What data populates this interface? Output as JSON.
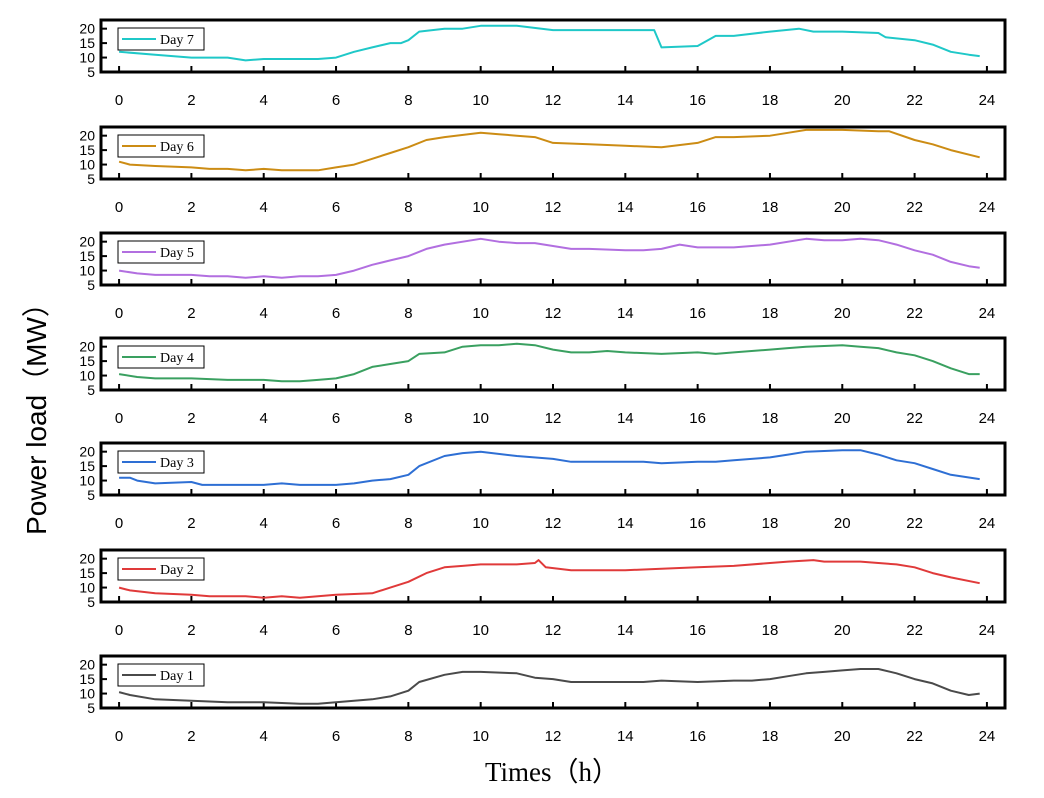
{
  "chart_data": {
    "type": "line",
    "ylabel": "Power load（MW）",
    "xlabel": "Times（h）",
    "xlim": [
      -0.5,
      24.5
    ],
    "x_ticks": [
      0,
      2,
      4,
      6,
      8,
      10,
      12,
      14,
      16,
      18,
      20,
      22,
      24
    ],
    "ylim": [
      5,
      23
    ],
    "y_ticks": [
      5,
      10,
      15,
      20
    ],
    "legend_position": "top-left",
    "series": [
      {
        "name": "Day 7",
        "color": "#1FC8C8",
        "values": [
          [
            0,
            12
          ],
          [
            1,
            11
          ],
          [
            2,
            10
          ],
          [
            3,
            10
          ],
          [
            3.5,
            9
          ],
          [
            4,
            9.5
          ],
          [
            5,
            9.5
          ],
          [
            5.5,
            9.5
          ],
          [
            6,
            10
          ],
          [
            6.5,
            12
          ],
          [
            7,
            13.5
          ],
          [
            7.5,
            15
          ],
          [
            7.8,
            15
          ],
          [
            8,
            16
          ],
          [
            8.3,
            19
          ],
          [
            9,
            20
          ],
          [
            9.5,
            20
          ],
          [
            10,
            21
          ],
          [
            11,
            21
          ],
          [
            12,
            19.5
          ],
          [
            13,
            19.5
          ],
          [
            14,
            19.5
          ],
          [
            14.8,
            19.5
          ],
          [
            15,
            13.5
          ],
          [
            16,
            14
          ],
          [
            16.5,
            17.5
          ],
          [
            17,
            17.5
          ],
          [
            18,
            19
          ],
          [
            18.8,
            20
          ],
          [
            19.2,
            19
          ],
          [
            20,
            19
          ],
          [
            21,
            18.5
          ],
          [
            21.2,
            17
          ],
          [
            22,
            16
          ],
          [
            22.5,
            14.5
          ],
          [
            23,
            12
          ],
          [
            23.5,
            11
          ],
          [
            23.8,
            10.5
          ]
        ]
      },
      {
        "name": "Day 6",
        "color": "#CC8C14",
        "values": [
          [
            0,
            11
          ],
          [
            0.3,
            10
          ],
          [
            1,
            9.5
          ],
          [
            2,
            9
          ],
          [
            2.5,
            8.5
          ],
          [
            3,
            8.5
          ],
          [
            3.5,
            8
          ],
          [
            4,
            8.5
          ],
          [
            4.5,
            8
          ],
          [
            5,
            8
          ],
          [
            5.5,
            8
          ],
          [
            6,
            9
          ],
          [
            6.5,
            10
          ],
          [
            7,
            12
          ],
          [
            7.5,
            14
          ],
          [
            8,
            16
          ],
          [
            8.5,
            18.5
          ],
          [
            9,
            19.5
          ],
          [
            10,
            21
          ],
          [
            10.5,
            20.5
          ],
          [
            11,
            20
          ],
          [
            11.5,
            19.5
          ],
          [
            12,
            17.5
          ],
          [
            13,
            17
          ],
          [
            14,
            16.5
          ],
          [
            15,
            16
          ],
          [
            16,
            17.5
          ],
          [
            16.5,
            19.5
          ],
          [
            17,
            19.5
          ],
          [
            18,
            20
          ],
          [
            18.5,
            21
          ],
          [
            19,
            22
          ],
          [
            20,
            22
          ],
          [
            21,
            21.5
          ],
          [
            21.3,
            21.5
          ],
          [
            22,
            18.5
          ],
          [
            22.5,
            17
          ],
          [
            23,
            15
          ],
          [
            23.8,
            12.5
          ]
        ]
      },
      {
        "name": "Day 5",
        "color": "#B26FE0",
        "values": [
          [
            0,
            10
          ],
          [
            0.5,
            9
          ],
          [
            1,
            8.5
          ],
          [
            2,
            8.5
          ],
          [
            2.5,
            8
          ],
          [
            3,
            8
          ],
          [
            3.5,
            7.5
          ],
          [
            4,
            8
          ],
          [
            4.5,
            7.5
          ],
          [
            5,
            8
          ],
          [
            5.5,
            8
          ],
          [
            6,
            8.5
          ],
          [
            6.5,
            10
          ],
          [
            7,
            12
          ],
          [
            7.5,
            13.5
          ],
          [
            8,
            15
          ],
          [
            8.5,
            17.5
          ],
          [
            9,
            19
          ],
          [
            10,
            21
          ],
          [
            10.5,
            20
          ],
          [
            11,
            19.5
          ],
          [
            11.5,
            19.5
          ],
          [
            12,
            18.5
          ],
          [
            12.5,
            17.5
          ],
          [
            13,
            17.5
          ],
          [
            14,
            17
          ],
          [
            14.5,
            17
          ],
          [
            15,
            17.5
          ],
          [
            15.5,
            19
          ],
          [
            16,
            18
          ],
          [
            17,
            18
          ],
          [
            18,
            19
          ],
          [
            19,
            21
          ],
          [
            19.5,
            20.5
          ],
          [
            20,
            20.5
          ],
          [
            20.5,
            21
          ],
          [
            21,
            20.5
          ],
          [
            21.5,
            19
          ],
          [
            22,
            17
          ],
          [
            22.5,
            15.5
          ],
          [
            23,
            13
          ],
          [
            23.5,
            11.5
          ],
          [
            23.8,
            11
          ]
        ]
      },
      {
        "name": "Day 4",
        "color": "#3AA060",
        "values": [
          [
            0,
            10.5
          ],
          [
            0.5,
            9.5
          ],
          [
            1,
            9
          ],
          [
            2,
            9
          ],
          [
            3,
            8.5
          ],
          [
            4,
            8.5
          ],
          [
            4.5,
            8
          ],
          [
            5,
            8
          ],
          [
            5.5,
            8.5
          ],
          [
            6,
            9
          ],
          [
            6.5,
            10.5
          ],
          [
            7,
            13
          ],
          [
            7.5,
            14
          ],
          [
            8,
            15
          ],
          [
            8.3,
            17.5
          ],
          [
            9,
            18
          ],
          [
            9.5,
            20
          ],
          [
            10,
            20.5
          ],
          [
            10.5,
            20.5
          ],
          [
            11,
            21
          ],
          [
            11.5,
            20.5
          ],
          [
            12,
            19
          ],
          [
            12.5,
            18
          ],
          [
            13,
            18
          ],
          [
            13.5,
            18.5
          ],
          [
            14,
            18
          ],
          [
            15,
            17.5
          ],
          [
            16,
            18
          ],
          [
            16.5,
            17.5
          ],
          [
            17,
            18
          ],
          [
            18,
            19
          ],
          [
            18.5,
            19.5
          ],
          [
            19,
            20
          ],
          [
            20,
            20.5
          ],
          [
            20.5,
            20
          ],
          [
            21,
            19.5
          ],
          [
            21.5,
            18
          ],
          [
            22,
            17
          ],
          [
            22.5,
            15
          ],
          [
            23,
            12.5
          ],
          [
            23.5,
            10.5
          ],
          [
            23.8,
            10.5
          ]
        ]
      },
      {
        "name": "Day 3",
        "color": "#2E6FD4",
        "values": [
          [
            0,
            11
          ],
          [
            0.3,
            11
          ],
          [
            0.5,
            10
          ],
          [
            1,
            9
          ],
          [
            2,
            9.5
          ],
          [
            2.3,
            8.5
          ],
          [
            3,
            8.5
          ],
          [
            4,
            8.5
          ],
          [
            4.5,
            9
          ],
          [
            5,
            8.5
          ],
          [
            6,
            8.5
          ],
          [
            6.5,
            9
          ],
          [
            7,
            10
          ],
          [
            7.5,
            10.5
          ],
          [
            8,
            12
          ],
          [
            8.3,
            15
          ],
          [
            9,
            18.5
          ],
          [
            9.5,
            19.5
          ],
          [
            10,
            20
          ],
          [
            11,
            18.5
          ],
          [
            12,
            17.5
          ],
          [
            12.5,
            16.5
          ],
          [
            13,
            16.5
          ],
          [
            14,
            16.5
          ],
          [
            14.5,
            16.5
          ],
          [
            15,
            16
          ],
          [
            16,
            16.5
          ],
          [
            16.5,
            16.5
          ],
          [
            17,
            17
          ],
          [
            18,
            18
          ],
          [
            18.5,
            19
          ],
          [
            19,
            20
          ],
          [
            20,
            20.5
          ],
          [
            20.5,
            20.5
          ],
          [
            21,
            19
          ],
          [
            21.5,
            17
          ],
          [
            22,
            16
          ],
          [
            22.5,
            14
          ],
          [
            23,
            12
          ],
          [
            23.8,
            10.5
          ]
        ]
      },
      {
        "name": "Day 2",
        "color": "#E03A3A",
        "values": [
          [
            0,
            10
          ],
          [
            0.3,
            9
          ],
          [
            1,
            8
          ],
          [
            2,
            7.5
          ],
          [
            2.5,
            7
          ],
          [
            3,
            7
          ],
          [
            3.5,
            7
          ],
          [
            4,
            6.5
          ],
          [
            4.5,
            7
          ],
          [
            5,
            6.5
          ],
          [
            6,
            7.5
          ],
          [
            7,
            8
          ],
          [
            7.5,
            10
          ],
          [
            8,
            12
          ],
          [
            8.5,
            15
          ],
          [
            9,
            17
          ],
          [
            9.5,
            17.5
          ],
          [
            10,
            18
          ],
          [
            11,
            18
          ],
          [
            11.5,
            18.5
          ],
          [
            11.6,
            19.5
          ],
          [
            11.8,
            17
          ],
          [
            12.5,
            16
          ],
          [
            13,
            16
          ],
          [
            14,
            16
          ],
          [
            15,
            16.5
          ],
          [
            16,
            17
          ],
          [
            17,
            17.5
          ],
          [
            18,
            18.5
          ],
          [
            18.5,
            19
          ],
          [
            19.2,
            19.5
          ],
          [
            19.5,
            19
          ],
          [
            20,
            19
          ],
          [
            20.5,
            19
          ],
          [
            21,
            18.5
          ],
          [
            21.5,
            18
          ],
          [
            22,
            17
          ],
          [
            22.5,
            15
          ],
          [
            23,
            13.5
          ],
          [
            23.8,
            11.5
          ]
        ]
      },
      {
        "name": "Day 1",
        "color": "#4A4A4A",
        "values": [
          [
            0,
            10.5
          ],
          [
            0.3,
            9.5
          ],
          [
            1,
            8
          ],
          [
            2,
            7.5
          ],
          [
            3,
            7
          ],
          [
            3.5,
            7
          ],
          [
            4,
            7
          ],
          [
            5,
            6.5
          ],
          [
            5.5,
            6.5
          ],
          [
            6,
            7
          ],
          [
            7,
            8
          ],
          [
            7.5,
            9
          ],
          [
            8,
            11
          ],
          [
            8.3,
            14
          ],
          [
            9,
            16.5
          ],
          [
            9.5,
            17.5
          ],
          [
            10,
            17.5
          ],
          [
            11,
            17
          ],
          [
            11.5,
            15.5
          ],
          [
            12,
            15
          ],
          [
            12.5,
            14
          ],
          [
            13,
            14
          ],
          [
            14,
            14
          ],
          [
            14.5,
            14
          ],
          [
            15,
            14.5
          ],
          [
            16,
            14
          ],
          [
            17,
            14.5
          ],
          [
            17.5,
            14.5
          ],
          [
            18,
            15
          ],
          [
            18.5,
            16
          ],
          [
            19,
            17
          ],
          [
            19.5,
            17.5
          ],
          [
            20,
            18
          ],
          [
            20.5,
            18.5
          ],
          [
            21,
            18.5
          ],
          [
            21.5,
            17
          ],
          [
            22,
            15
          ],
          [
            22.5,
            13.5
          ],
          [
            23,
            11
          ],
          [
            23.5,
            9.5
          ],
          [
            23.8,
            10
          ]
        ]
      }
    ]
  }
}
